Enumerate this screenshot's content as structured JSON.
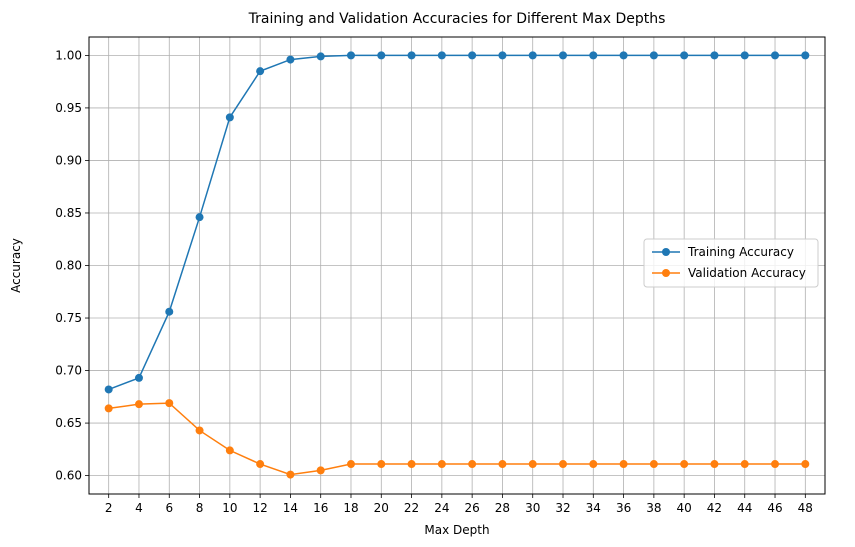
{
  "chart_data": {
    "type": "line",
    "title": "Training and Validation Accuracies for Different Max Depths",
    "xlabel": "Max Depth",
    "ylabel": "Accuracy",
    "x": [
      2,
      4,
      6,
      8,
      10,
      12,
      14,
      16,
      18,
      20,
      22,
      24,
      26,
      28,
      30,
      32,
      34,
      36,
      38,
      40,
      42,
      44,
      46,
      48
    ],
    "xlim": [
      0.7,
      49.3
    ],
    "ylim": [
      0.5825,
      1.0175
    ],
    "xticks": [
      2,
      4,
      6,
      8,
      10,
      12,
      14,
      16,
      18,
      20,
      22,
      24,
      26,
      28,
      30,
      32,
      34,
      36,
      38,
      40,
      42,
      44,
      46,
      48
    ],
    "yticks": [
      0.6,
      0.65,
      0.7,
      0.75,
      0.8,
      0.85,
      0.9,
      0.95,
      1.0
    ],
    "ytick_labels": [
      "0.60",
      "0.65",
      "0.70",
      "0.75",
      "0.80",
      "0.85",
      "0.90",
      "0.95",
      "1.00"
    ],
    "grid": true,
    "legend_position": "center-right",
    "series": [
      {
        "name": "Training Accuracy",
        "color": "#1f77b4",
        "marker": "circle",
        "values": [
          0.682,
          0.693,
          0.756,
          0.846,
          0.941,
          0.985,
          0.996,
          0.999,
          1.0,
          1.0,
          1.0,
          1.0,
          1.0,
          1.0,
          1.0,
          1.0,
          1.0,
          1.0,
          1.0,
          1.0,
          1.0,
          1.0,
          1.0,
          1.0
        ]
      },
      {
        "name": "Validation Accuracy",
        "color": "#ff7f0e",
        "marker": "circle",
        "values": [
          0.664,
          0.668,
          0.669,
          0.643,
          0.624,
          0.611,
          0.601,
          0.605,
          0.611,
          0.611,
          0.611,
          0.611,
          0.611,
          0.611,
          0.611,
          0.611,
          0.611,
          0.611,
          0.611,
          0.611,
          0.611,
          0.611,
          0.611,
          0.611
        ]
      }
    ]
  }
}
